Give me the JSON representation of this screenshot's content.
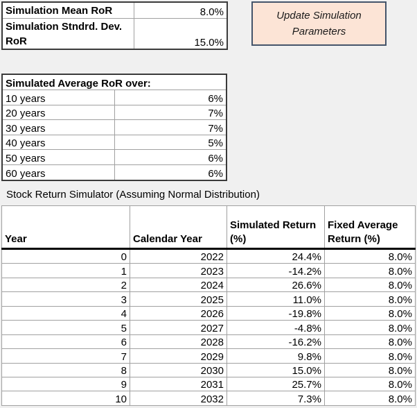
{
  "colors": {
    "page_background": "#F0F0F0",
    "cell_background": "#FFFFFF",
    "grid_line": "#A0A0A0",
    "dark_border": "#3A3A3A",
    "button_background": "#FCE4D6",
    "button_border": "#44546A",
    "header_underline": "#000000"
  },
  "params": {
    "rows": [
      {
        "label": "Simulation Mean RoR",
        "value": "8.0%"
      },
      {
        "label": "Simulation Stndrd. Dev. RoR",
        "value": "15.0%"
      }
    ]
  },
  "button": {
    "line1": "Update Simulation",
    "line2": "Parameters"
  },
  "avg": {
    "title": "Simulated Average RoR over:",
    "rows": [
      {
        "label": "10 years",
        "value": "6%"
      },
      {
        "label": "20 years",
        "value": "7%"
      },
      {
        "label": "30 years",
        "value": "7%"
      },
      {
        "label": "40 years",
        "value": "5%"
      },
      {
        "label": "50 years",
        "value": "6%"
      },
      {
        "label": "60 years",
        "value": "6%"
      }
    ]
  },
  "simulator": {
    "title": "Stock Return Simulator (Assuming Normal Distribution)",
    "columns": [
      "Year",
      "Calendar Year",
      "Simulated Return (%)",
      "Fixed Average Return (%)"
    ],
    "rows": [
      {
        "year": "0",
        "calendar": "2022",
        "sim": "24.4%",
        "fixed": "8.0%"
      },
      {
        "year": "1",
        "calendar": "2023",
        "sim": "-14.2%",
        "fixed": "8.0%"
      },
      {
        "year": "2",
        "calendar": "2024",
        "sim": "26.6%",
        "fixed": "8.0%"
      },
      {
        "year": "3",
        "calendar": "2025",
        "sim": "11.0%",
        "fixed": "8.0%"
      },
      {
        "year": "4",
        "calendar": "2026",
        "sim": "-19.8%",
        "fixed": "8.0%"
      },
      {
        "year": "5",
        "calendar": "2027",
        "sim": "-4.8%",
        "fixed": "8.0%"
      },
      {
        "year": "6",
        "calendar": "2028",
        "sim": "-16.2%",
        "fixed": "8.0%"
      },
      {
        "year": "7",
        "calendar": "2029",
        "sim": "9.8%",
        "fixed": "8.0%"
      },
      {
        "year": "8",
        "calendar": "2030",
        "sim": "15.0%",
        "fixed": "8.0%"
      },
      {
        "year": "9",
        "calendar": "2031",
        "sim": "25.7%",
        "fixed": "8.0%"
      },
      {
        "year": "10",
        "calendar": "2032",
        "sim": "7.3%",
        "fixed": "8.0%"
      }
    ]
  }
}
